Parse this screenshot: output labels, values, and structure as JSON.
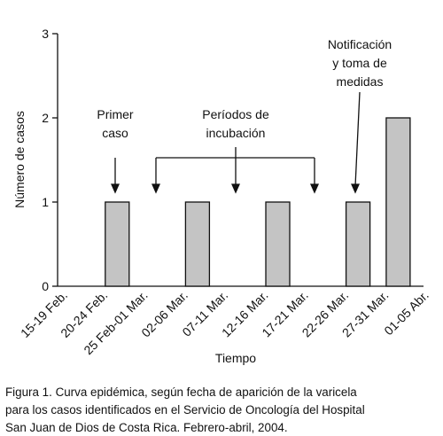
{
  "chart_data": {
    "type": "bar",
    "categories": [
      "15-19 Feb.",
      "20-24 Feb.",
      "25 Feb-01 Mar.",
      "02-06 Mar.",
      "07-11 Mar.",
      "12-16 Mar.",
      "17-21 Mar.",
      "22-26 Mar.",
      "27-31 Mar.",
      "01-05 Abr."
    ],
    "values": [
      0,
      1,
      0,
      1,
      0,
      1,
      0,
      1,
      2,
      0
    ],
    "color": "#c4c4c4",
    "ylim": [
      0,
      3
    ],
    "yticks": [
      0,
      1,
      2,
      3
    ],
    "y_label": "Número de casos",
    "x_label": "Tiempo",
    "annotations": [
      {
        "lines": [
          "Primer",
          "caso"
        ]
      },
      {
        "lines": [
          "Períodos de",
          "incubación"
        ]
      },
      {
        "lines": [
          "Notificación",
          "y toma de",
          "medidas"
        ]
      }
    ],
    "caption": [
      "Figura 1. Curva epidémica, según fecha de aparición de la varicela",
      "para los casos identificados en el Servicio de Oncología del Hospital",
      "San Juan de Dios de Costa Rica. Febrero-abril, 2004."
    ]
  }
}
